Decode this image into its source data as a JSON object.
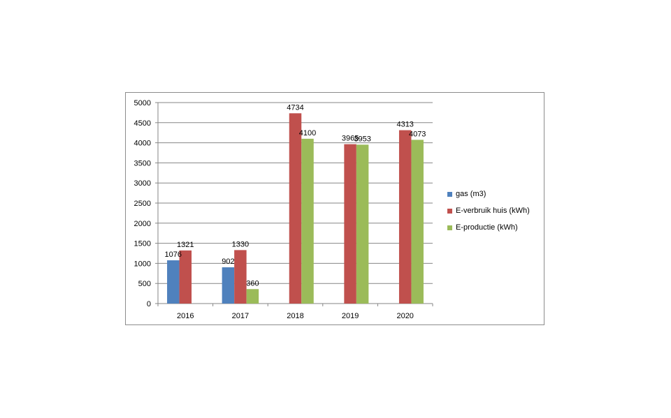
{
  "chart_data": {
    "type": "bar",
    "categories": [
      "2016",
      "2017",
      "2018",
      "2019",
      "2020"
    ],
    "series": [
      {
        "name": "gas (m3)",
        "color": "#4f81bd",
        "values": [
          1076,
          902,
          null,
          null,
          null
        ]
      },
      {
        "name": "E-verbruik huis (kWh)",
        "color": "#c0504d",
        "values": [
          1321,
          1330,
          4734,
          3965,
          4313
        ]
      },
      {
        "name": "E-productie (kWh)",
        "color": "#9bbb59",
        "values": [
          null,
          360,
          4100,
          3953,
          4073
        ]
      }
    ],
    "y_ticks": [
      "0",
      "500",
      "1000",
      "1500",
      "2000",
      "2500",
      "3000",
      "3500",
      "4000",
      "4500",
      "5000"
    ],
    "ylim": [
      0,
      5000
    ],
    "grid": true,
    "legend_position": "right",
    "title": "",
    "xlabel": "",
    "ylabel": ""
  }
}
